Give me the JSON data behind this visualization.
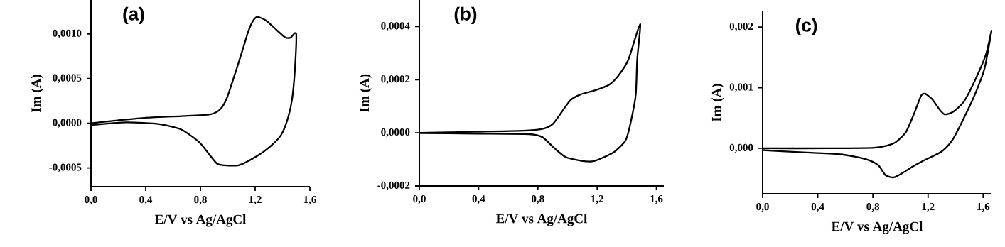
{
  "chart_data": [
    {
      "type": "line",
      "xlabel": "E/V vs Ag/AgCl",
      "ylabel": "Im (A)",
      "annotations": [
        "(a)"
      ],
      "xlim": [
        0,
        1.6
      ],
      "ylim": [
        -0.00071,
        0.00138
      ],
      "xticks": [
        {
          "value": 0,
          "label": "0,0"
        },
        {
          "value": 0.4,
          "label": "0,4"
        },
        {
          "value": 0.8,
          "label": "0,8"
        },
        {
          "value": 1.2,
          "label": "1,2"
        },
        {
          "value": 1.6,
          "label": "1,6"
        }
      ],
      "yticks": [
        {
          "value": -0.0005,
          "label": "-0,0005"
        },
        {
          "value": 0,
          "label": "0,0000"
        },
        {
          "value": 0.0005,
          "label": "0,0005"
        },
        {
          "value": 0.001,
          "label": "0,0010"
        }
      ],
      "series": [
        {
          "color": "#000000",
          "x": [
            0,
            0.18,
            0.39,
            0.66,
            0.87,
            0.94,
            0.99,
            1.05,
            1.11,
            1.15,
            1.19,
            1.22,
            1.28,
            1.36,
            1.42,
            1.46,
            1.5,
            1.49,
            1.47,
            1.44,
            1.39,
            1.31,
            1.21,
            1.08,
            0.97,
            0.92,
            0.86,
            0.79,
            0.66,
            0.5,
            0.26,
            0
          ],
          "values": [
            0,
            3e-05,
            6e-05,
            8e-05,
            0.0001,
            0.00015,
            0.00027,
            0.00054,
            0.00083,
            0.00103,
            0.00116,
            0.00119,
            0.00115,
            0.00104,
            0.00096,
            0.00096,
            0.001,
            0.00059,
            0.00027,
            6e-05,
            -0.00013,
            -0.00026,
            -0.00037,
            -0.00047,
            -0.00047,
            -0.00045,
            -0.00034,
            -0.00021,
            -7e-05,
            -1e-05,
            1e-05,
            -2e-05
          ]
        }
      ]
    },
    {
      "type": "line",
      "xlabel": "E/V vs Ag/AgCl",
      "ylabel": "Im (A)",
      "annotations": [
        "(b)"
      ],
      "xlim": [
        0,
        1.65
      ],
      "ylim": [
        -0.0002,
        0.0005
      ],
      "xticks": [
        {
          "value": 0,
          "label": "0,0"
        },
        {
          "value": 0.4,
          "label": "0,4"
        },
        {
          "value": 0.8,
          "label": "0,8"
        },
        {
          "value": 1.2,
          "label": "1,2"
        },
        {
          "value": 1.6,
          "label": "1,6"
        }
      ],
      "yticks": [
        {
          "value": -0.0002,
          "label": "-0,0002"
        },
        {
          "value": 0,
          "label": "0,0000"
        },
        {
          "value": 0.0002,
          "label": "0,0002"
        },
        {
          "value": 0.0004,
          "label": "0,0004"
        }
      ],
      "series": [
        {
          "color": "#000000",
          "x": [
            0,
            0.38,
            0.7,
            0.83,
            0.9,
            0.96,
            1.02,
            1.09,
            1.18,
            1.28,
            1.34,
            1.41,
            1.49,
            1.47,
            1.46,
            1.42,
            1.39,
            1.31,
            1.18,
            1.1,
            0.99,
            0.91,
            0.83,
            0.74,
            0.38,
            0
          ],
          "values": [
            0,
            4e-06,
            8e-06,
            1.5e-05,
            3.3e-05,
            7.8e-05,
            0.000123,
            0.000145,
            0.000159,
            0.000181,
            0.000213,
            0.000275,
            0.00041,
            0.000275,
            0.000141,
            2.4e-05,
            -3e-05,
            -7.4e-05,
            -0.000106,
            -0.000106,
            -9.2e-05,
            -5.7e-05,
            -1.6e-05,
            -5e-06,
            -3e-06,
            -1e-06
          ]
        }
      ]
    },
    {
      "type": "line",
      "xlabel": "E/V vs Ag/AgCl",
      "ylabel": "Im (A)",
      "annotations": [
        "(c)"
      ],
      "xlim": [
        0,
        1.66
      ],
      "ylim": [
        -0.00075,
        0.00226
      ],
      "xticks": [
        {
          "value": 0,
          "label": "0,0"
        },
        {
          "value": 0.4,
          "label": "0,4"
        },
        {
          "value": 0.8,
          "label": "0,8"
        },
        {
          "value": 1.2,
          "label": "1,2"
        },
        {
          "value": 1.6,
          "label": "1,6"
        }
      ],
      "yticks": [
        {
          "value": 0,
          "label": "0,000"
        },
        {
          "value": 0.001,
          "label": "0,001"
        },
        {
          "value": 0.002,
          "label": "0,002"
        }
      ],
      "series": [
        {
          "color": "#000000",
          "x": [
            0,
            0.49,
            0.81,
            0.91,
            0.97,
            1.04,
            1.1,
            1.15,
            1.18,
            1.23,
            1.28,
            1.32,
            1.38,
            1.46,
            1.54,
            1.62,
            1.66,
            1.61,
            1.54,
            1.46,
            1.38,
            1.3,
            1.17,
            1.09,
            1.02,
            0.95,
            0.89,
            0.84,
            0.75,
            0.57,
            0.32,
            0
          ],
          "values": [
            0,
            0,
            1e-05,
            5e-05,
            0.00011,
            0.00027,
            0.00058,
            0.00087,
            0.0009,
            0.00081,
            0.00065,
            0.00056,
            0.0006,
            0.00077,
            0.00112,
            0.00155,
            0.00194,
            0.00132,
            0.00089,
            0.0005,
            0.00015,
            -5e-05,
            -0.0002,
            -0.0003,
            -0.0004,
            -0.00048,
            -0.00044,
            -0.00028,
            -0.00018,
            -0.0001,
            -7e-05,
            -3e-05
          ]
        }
      ]
    }
  ]
}
